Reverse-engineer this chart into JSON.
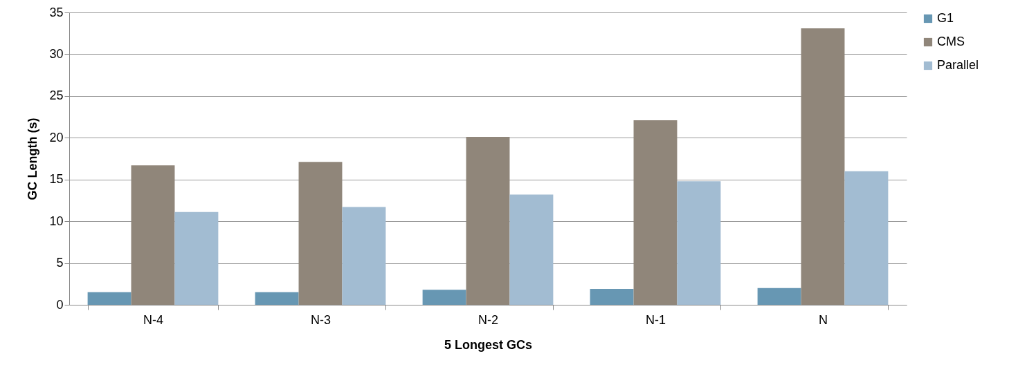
{
  "chart_data": {
    "type": "bar",
    "xlabel": "5 Longest GCs",
    "ylabel": "GC Length (s)",
    "categories": [
      "N-4",
      "N-3",
      "N-2",
      "N-1",
      "N"
    ],
    "series": [
      {
        "name": "G1",
        "color": "#6797b3",
        "values": [
          1.5,
          1.5,
          1.8,
          1.9,
          2.0
        ]
      },
      {
        "name": "CMS",
        "color": "#90867a",
        "values": [
          16.7,
          17.1,
          20.1,
          22.1,
          33.1
        ]
      },
      {
        "name": "Parallel",
        "color": "#a2bcd2",
        "values": [
          11.1,
          11.7,
          13.2,
          14.8,
          16.0
        ]
      }
    ],
    "ylim": [
      0,
      35
    ],
    "yticks": [
      0,
      5,
      10,
      15,
      20,
      25,
      30,
      35
    ],
    "grid": "y",
    "legend": "right"
  }
}
